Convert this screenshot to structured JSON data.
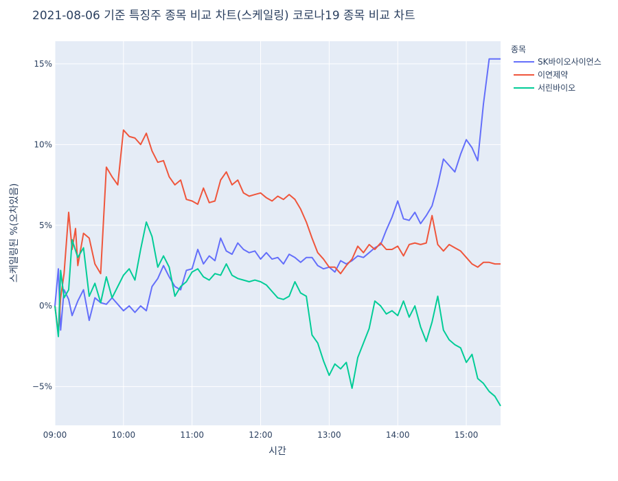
{
  "chart_data": {
    "type": "line",
    "title": "2021-08-06 기준 특징주 종목 비교 차트(스케일링) 코로나19 종목 비교 차트",
    "xlabel": "시간",
    "ylabel": "스케일링된 %(오차있음)",
    "x_ticks": [
      "09:00",
      "10:00",
      "11:00",
      "12:00",
      "13:00",
      "14:00",
      "15:00"
    ],
    "xlim": [
      "09:00",
      "15:30"
    ],
    "y_ticks": [
      -5,
      0,
      5,
      10,
      15
    ],
    "y_tick_labels": [
      "−5%",
      "0%",
      "5%",
      "10%",
      "15%"
    ],
    "ylim": [
      -7.4,
      16.4
    ],
    "grid": true,
    "legend_title": "종목",
    "legend_position": "right",
    "series": [
      {
        "name": "SK바이오사이언스",
        "color": "#636efa",
        "x": [
          "09:00",
          "09:03",
          "09:05",
          "09:08",
          "09:12",
          "09:15",
          "09:20",
          "09:25",
          "09:30",
          "09:35",
          "09:40",
          "09:45",
          "09:50",
          "09:55",
          "10:00",
          "10:05",
          "10:10",
          "10:15",
          "10:20",
          "10:25",
          "10:30",
          "10:35",
          "10:40",
          "10:45",
          "10:50",
          "10:55",
          "11:00",
          "11:05",
          "11:10",
          "11:15",
          "11:20",
          "11:25",
          "11:30",
          "11:35",
          "11:40",
          "11:45",
          "11:50",
          "11:55",
          "12:00",
          "12:05",
          "12:10",
          "12:15",
          "12:20",
          "12:25",
          "12:30",
          "12:35",
          "12:40",
          "12:45",
          "12:50",
          "12:55",
          "13:00",
          "13:05",
          "13:10",
          "13:15",
          "13:20",
          "13:25",
          "13:30",
          "13:35",
          "13:40",
          "13:45",
          "13:50",
          "13:55",
          "14:00",
          "14:05",
          "14:10",
          "14:15",
          "14:20",
          "14:25",
          "14:30",
          "14:35",
          "14:40",
          "14:45",
          "14:50",
          "14:55",
          "15:00",
          "15:05",
          "15:10",
          "15:15",
          "15:20",
          "15:25",
          "15:30"
        ],
        "y": [
          0,
          2.3,
          -1.5,
          1.0,
          0.4,
          -0.6,
          0.3,
          1.0,
          -0.9,
          0.5,
          0.2,
          0.1,
          0.5,
          0.1,
          -0.3,
          0,
          -0.4,
          0,
          -0.3,
          1.2,
          1.7,
          2.5,
          1.8,
          1.2,
          1.0,
          2.2,
          2.3,
          3.5,
          2.6,
          3.1,
          2.8,
          4.2,
          3.4,
          3.2,
          3.9,
          3.5,
          3.3,
          3.4,
          2.9,
          3.3,
          2.9,
          3.0,
          2.6,
          3.2,
          3.0,
          2.7,
          3.0,
          3.0,
          2.5,
          2.3,
          2.4,
          2.1,
          2.8,
          2.6,
          2.8,
          3.1,
          3.0,
          3.3,
          3.6,
          3.8,
          4.7,
          5.5,
          6.5,
          5.4,
          5.3,
          5.8,
          5.1,
          5.6,
          6.2,
          7.5,
          9.1,
          8.7,
          8.3,
          9.4,
          10.3,
          9.8,
          9.0,
          12.5,
          15.3,
          15.3,
          15.3
        ]
      },
      {
        "name": "이연제약",
        "color": "#ef553b",
        "x": [
          "09:00",
          "09:03",
          "09:05",
          "09:08",
          "09:12",
          "09:15",
          "09:18",
          "09:20",
          "09:25",
          "09:30",
          "09:35",
          "09:40",
          "09:45",
          "09:50",
          "09:55",
          "10:00",
          "10:05",
          "10:10",
          "10:15",
          "10:20",
          "10:25",
          "10:30",
          "10:35",
          "10:40",
          "10:45",
          "10:50",
          "10:55",
          "11:00",
          "11:05",
          "11:10",
          "11:15",
          "11:20",
          "11:25",
          "11:30",
          "11:35",
          "11:40",
          "11:45",
          "11:50",
          "11:55",
          "12:00",
          "12:05",
          "12:10",
          "12:15",
          "12:20",
          "12:25",
          "12:30",
          "12:35",
          "12:40",
          "12:45",
          "12:50",
          "12:55",
          "13:00",
          "13:05",
          "13:10",
          "13:15",
          "13:20",
          "13:25",
          "13:30",
          "13:35",
          "13:40",
          "13:45",
          "13:50",
          "13:55",
          "14:00",
          "14:05",
          "14:10",
          "14:15",
          "14:20",
          "14:25",
          "14:30",
          "14:35",
          "14:40",
          "14:45",
          "14:50",
          "14:55",
          "15:00",
          "15:05",
          "15:10",
          "15:15",
          "15:20",
          "15:25",
          "15:30"
        ],
        "y": [
          0,
          -1.7,
          0.5,
          2.0,
          5.8,
          3.5,
          4.8,
          2.5,
          4.5,
          4.2,
          2.6,
          2.0,
          8.6,
          8.0,
          7.5,
          10.9,
          10.5,
          10.4,
          10.0,
          10.7,
          9.6,
          8.9,
          9.0,
          8.0,
          7.5,
          7.8,
          6.6,
          6.5,
          6.3,
          7.3,
          6.4,
          6.5,
          7.8,
          8.3,
          7.5,
          7.8,
          7.0,
          6.8,
          6.9,
          7.0,
          6.7,
          6.5,
          6.8,
          6.6,
          6.9,
          6.6,
          6.0,
          5.2,
          4.2,
          3.3,
          2.9,
          2.4,
          2.4,
          2.0,
          2.5,
          2.9,
          3.7,
          3.3,
          3.8,
          3.5,
          3.9,
          3.5,
          3.5,
          3.7,
          3.1,
          3.8,
          3.9,
          3.8,
          3.9,
          5.6,
          3.8,
          3.4,
          3.8,
          3.6,
          3.4,
          3.0,
          2.6,
          2.4,
          2.7,
          2.7,
          2.6,
          2.6
        ]
      },
      {
        "name": "서린바이오",
        "color": "#00cc96",
        "x": [
          "09:00",
          "09:03",
          "09:05",
          "09:08",
          "09:12",
          "09:15",
          "09:20",
          "09:25",
          "09:30",
          "09:35",
          "09:40",
          "09:45",
          "09:50",
          "09:55",
          "10:00",
          "10:05",
          "10:10",
          "10:15",
          "10:20",
          "10:25",
          "10:30",
          "10:35",
          "10:40",
          "10:45",
          "10:50",
          "10:55",
          "11:00",
          "11:05",
          "11:10",
          "11:15",
          "11:20",
          "11:25",
          "11:30",
          "11:35",
          "11:40",
          "11:45",
          "11:50",
          "11:55",
          "12:00",
          "12:05",
          "12:10",
          "12:15",
          "12:20",
          "12:25",
          "12:30",
          "12:35",
          "12:40",
          "12:45",
          "12:50",
          "12:55",
          "13:00",
          "13:05",
          "13:10",
          "13:15",
          "13:20",
          "13:25",
          "13:30",
          "13:35",
          "13:40",
          "13:45",
          "13:50",
          "13:55",
          "14:00",
          "14:05",
          "14:10",
          "14:15",
          "14:20",
          "14:25",
          "14:30",
          "14:35",
          "14:40",
          "14:45",
          "14:50",
          "14:55",
          "15:00",
          "15:05",
          "15:10",
          "15:15",
          "15:20",
          "15:25",
          "15:30"
        ],
        "y": [
          0,
          -1.9,
          2.2,
          0.5,
          1.0,
          4.1,
          3.0,
          3.6,
          0.6,
          1.4,
          0.2,
          1.8,
          0.5,
          1.2,
          1.9,
          2.3,
          1.6,
          3.5,
          5.2,
          4.3,
          2.4,
          3.1,
          2.4,
          0.6,
          1.2,
          1.5,
          2.1,
          2.3,
          1.8,
          1.6,
          2.0,
          1.9,
          2.6,
          1.9,
          1.7,
          1.6,
          1.5,
          1.6,
          1.5,
          1.3,
          0.9,
          0.5,
          0.4,
          0.6,
          1.5,
          0.8,
          0.6,
          -1.8,
          -2.3,
          -3.4,
          -4.3,
          -3.6,
          -3.9,
          -3.5,
          -5.1,
          -3.2,
          -2.3,
          -1.4,
          0.3,
          0,
          -0.5,
          -0.3,
          -0.6,
          0.3,
          -0.7,
          0,
          -1.3,
          -2.2,
          -1.0,
          0.6,
          -1.5,
          -2.1,
          -2.4,
          -2.6,
          -3.5,
          -3.0,
          -4.5,
          -4.8,
          -5.3,
          -5.6,
          -6.2
        ]
      }
    ]
  }
}
